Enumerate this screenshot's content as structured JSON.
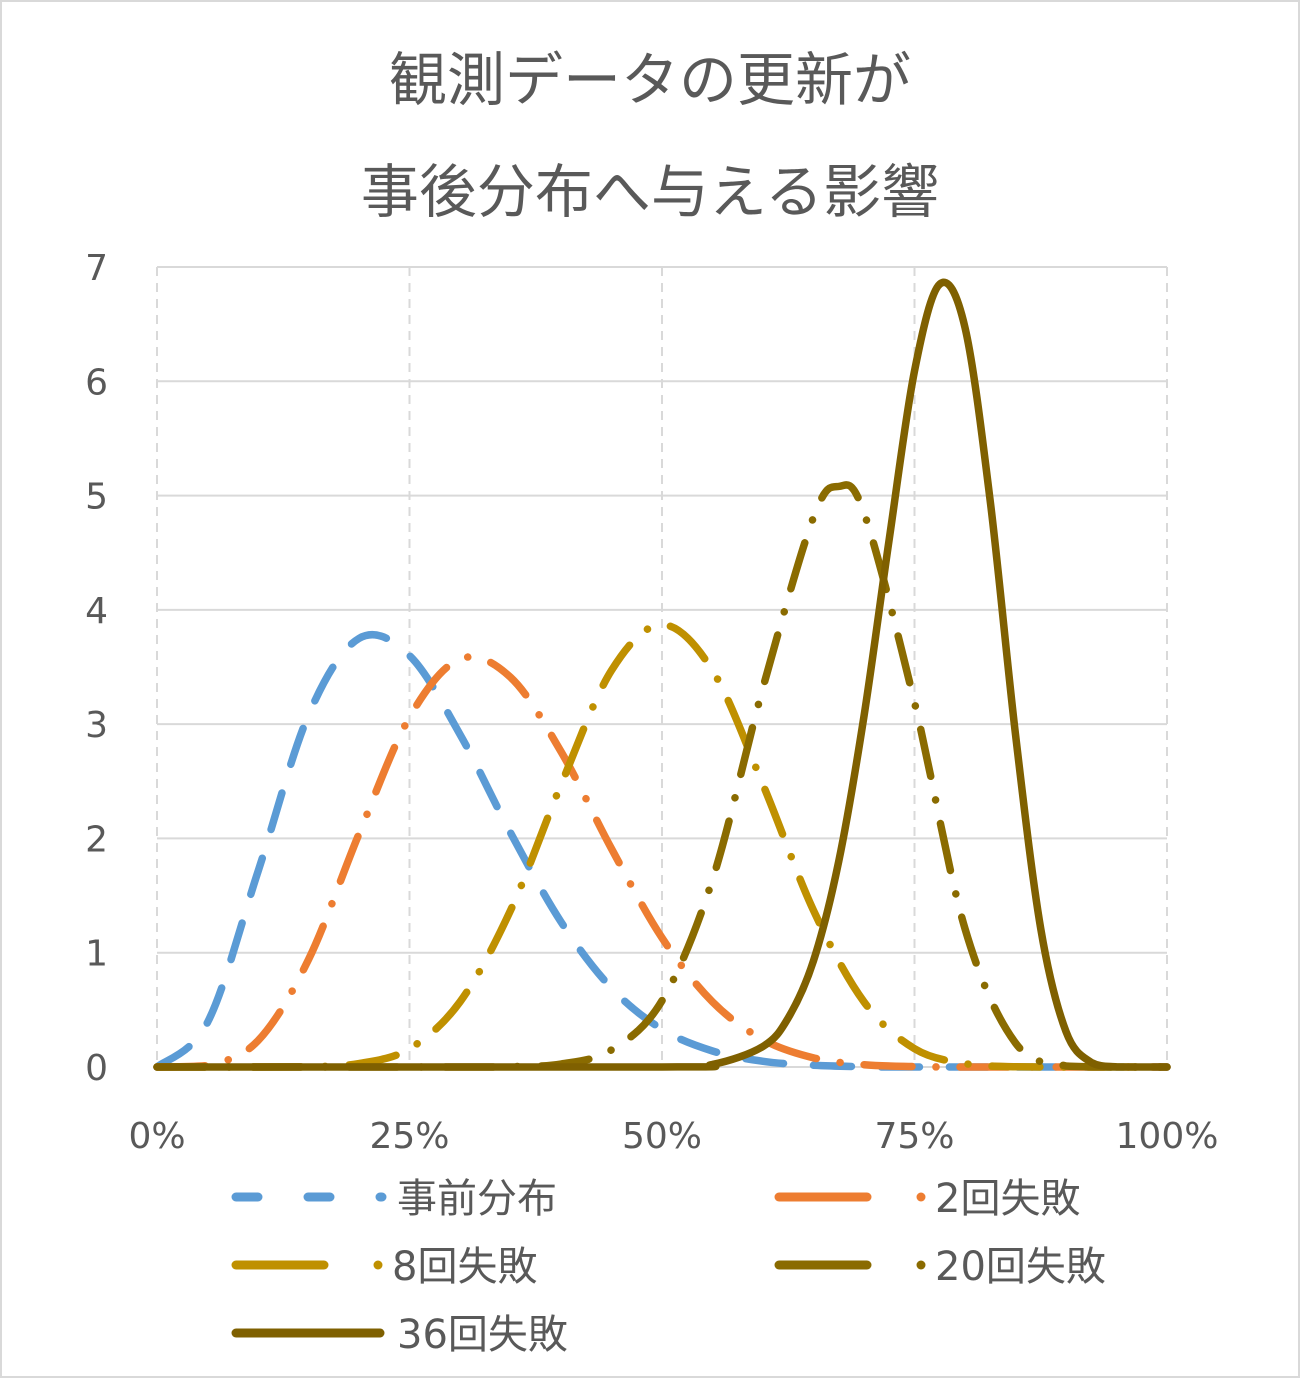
{
  "chart_data": {
    "type": "line",
    "title_lines": [
      "観測データの更新が",
      "事後分布へ与える影響"
    ],
    "xlabel": "",
    "ylabel": "",
    "xlim": [
      0,
      1
    ],
    "ylim": [
      0,
      7
    ],
    "x_ticks": [
      "0%",
      "25%",
      "50%",
      "75%",
      "100%"
    ],
    "x_tick_values": [
      0,
      0.25,
      0.5,
      0.75,
      1
    ],
    "y_ticks": [
      "0",
      "1",
      "2",
      "3",
      "4",
      "5",
      "6",
      "7"
    ],
    "y_tick_values": [
      0,
      1,
      2,
      3,
      4,
      5,
      6,
      7
    ],
    "grid": {
      "horizontal": "solid",
      "vertical": "dashed"
    },
    "legend_placement": "bottom",
    "series": [
      {
        "name": "事前分布",
        "color": "#5B9BD5",
        "style": "dash",
        "points": [
          [
            0,
            0
          ],
          [
            0.05,
            0.39
          ],
          [
            0.1,
            1.71
          ],
          [
            0.15,
            3.08
          ],
          [
            0.2,
            3.75
          ],
          [
            0.25,
            3.6
          ],
          [
            0.3,
            2.91
          ],
          [
            0.35,
            2.05
          ],
          [
            0.4,
            1.27
          ],
          [
            0.45,
            0.69
          ],
          [
            0.5,
            0.33
          ],
          [
            0.55,
            0.14
          ],
          [
            0.6,
            0.05
          ],
          [
            0.65,
            0.015
          ],
          [
            0.7,
            0.003
          ],
          [
            0.75,
            0
          ],
          [
            1,
            0
          ]
        ]
      },
      {
        "name": "2回失敗",
        "color": "#ED7D31",
        "style": "long-dash-dot",
        "points": [
          [
            0,
            0
          ],
          [
            0.05,
            0.013
          ],
          [
            0.1,
            0.23
          ],
          [
            0.15,
            0.94
          ],
          [
            0.2,
            2.04
          ],
          [
            0.25,
            3.06
          ],
          [
            0.3,
            3.57
          ],
          [
            0.35,
            3.41
          ],
          [
            0.4,
            2.76
          ],
          [
            0.45,
            1.91
          ],
          [
            0.5,
            1.13
          ],
          [
            0.55,
            0.57
          ],
          [
            0.6,
            0.24
          ],
          [
            0.65,
            0.08
          ],
          [
            0.7,
            0.02
          ],
          [
            0.75,
            0.004
          ],
          [
            0.8,
            0
          ],
          [
            1,
            0
          ]
        ]
      },
      {
        "name": "8回失敗",
        "color": "#BF9000",
        "style": "long-dash-dot",
        "points": [
          [
            0,
            0
          ],
          [
            0.1,
            0
          ],
          [
            0.15,
            0.002
          ],
          [
            0.2,
            0.03
          ],
          [
            0.25,
            0.16
          ],
          [
            0.3,
            0.57
          ],
          [
            0.35,
            1.37
          ],
          [
            0.4,
            2.47
          ],
          [
            0.45,
            3.47
          ],
          [
            0.5,
            3.87
          ],
          [
            0.55,
            3.47
          ],
          [
            0.6,
            2.47
          ],
          [
            0.65,
            1.37
          ],
          [
            0.7,
            0.57
          ],
          [
            0.75,
            0.16
          ],
          [
            0.8,
            0.03
          ],
          [
            0.85,
            0.002
          ],
          [
            0.9,
            0
          ],
          [
            1,
            0
          ]
        ]
      },
      {
        "name": "20回失敗",
        "color": "#8A6B00",
        "style": "long-dash-dot",
        "points": [
          [
            0,
            0
          ],
          [
            0.3,
            0
          ],
          [
            0.35,
            0.003
          ],
          [
            0.4,
            0.026
          ],
          [
            0.45,
            0.15
          ],
          [
            0.5,
            0.58
          ],
          [
            0.55,
            1.64
          ],
          [
            0.6,
            3.32
          ],
          [
            0.65,
            4.81
          ],
          [
            0.675,
            5.08
          ],
          [
            0.7,
            4.85
          ],
          [
            0.75,
            3.19
          ],
          [
            0.8,
            1.21
          ],
          [
            0.85,
            0.21
          ],
          [
            0.9,
            0.009
          ],
          [
            0.95,
            0
          ],
          [
            1,
            0
          ]
        ]
      },
      {
        "name": "36回失敗",
        "color": "#7F6000",
        "style": "solid",
        "points": [
          [
            0,
            0
          ],
          [
            0.5,
            0
          ],
          [
            0.55,
            0.022
          ],
          [
            0.6,
            0.18
          ],
          [
            0.625,
            0.43
          ],
          [
            0.65,
            0.93
          ],
          [
            0.675,
            1.8
          ],
          [
            0.7,
            3.07
          ],
          [
            0.725,
            4.62
          ],
          [
            0.75,
            6.09
          ],
          [
            0.775,
            6.85
          ],
          [
            0.8,
            6.47
          ],
          [
            0.825,
            4.95
          ],
          [
            0.85,
            2.91
          ],
          [
            0.875,
            1.21
          ],
          [
            0.9,
            0.31
          ],
          [
            0.925,
            0.04
          ],
          [
            0.95,
            0.001
          ],
          [
            0.975,
            0
          ],
          [
            1,
            0
          ]
        ]
      }
    ]
  }
}
